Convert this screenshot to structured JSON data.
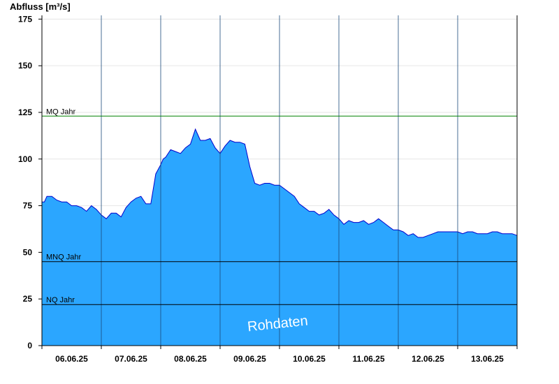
{
  "chart_data": {
    "type": "area",
    "ylabel": "Abfluss [m³/s]",
    "ylim": [
      0,
      177
    ],
    "yticks": [
      0,
      25,
      50,
      75,
      100,
      125,
      150,
      175
    ],
    "x_range": [
      "06.06.25 00:00",
      "14.06.25 00:00"
    ],
    "xtick_labels": [
      "06.06.25",
      "07.06.25",
      "08.06.25",
      "09.06.25",
      "10.06.25",
      "11.06.25",
      "12.06.25",
      "13.06.25"
    ],
    "grid": true,
    "colors": {
      "fill": "#2ba6ff",
      "line": "#0000cc",
      "mq_line": "#008000",
      "ref_line": "#000000"
    },
    "series": [
      {
        "x_hours": [
          0,
          1,
          2,
          4,
          6,
          8,
          10,
          12,
          14,
          16,
          18,
          20,
          22,
          24,
          26,
          28,
          30,
          32,
          34,
          36,
          38,
          40,
          42,
          44,
          46,
          48,
          49,
          50,
          52,
          54,
          56,
          58,
          60,
          62,
          64,
          66,
          68,
          70,
          72,
          74,
          76,
          78,
          80,
          82,
          84,
          86,
          88,
          90,
          92,
          94,
          96,
          98,
          100,
          102,
          104,
          106,
          108,
          110,
          112,
          114,
          116,
          118,
          120,
          122,
          124,
          126,
          128,
          130,
          132,
          134,
          136,
          138,
          140,
          142,
          144,
          146,
          148,
          150,
          152,
          154,
          156,
          158,
          160,
          162,
          164,
          166,
          168,
          170,
          172,
          174,
          176,
          178,
          180,
          182,
          184,
          186,
          188,
          190,
          192
        ],
        "y": [
          77,
          77,
          80,
          80,
          78,
          77,
          77,
          75,
          75,
          74,
          72,
          75,
          73,
          70,
          68,
          71,
          71,
          69,
          74,
          77,
          79,
          80,
          76,
          76,
          92,
          97,
          100,
          101,
          105,
          104,
          103,
          106,
          108,
          116,
          110,
          110,
          111,
          106,
          103,
          107,
          110,
          109,
          109,
          108,
          96,
          87,
          86,
          87,
          87,
          86,
          86,
          84,
          82,
          80,
          76,
          74,
          72,
          72,
          70,
          71,
          73,
          70,
          68,
          65,
          67,
          66,
          66,
          67,
          65,
          66,
          68,
          66,
          64,
          62,
          62,
          61,
          59,
          60,
          58,
          58,
          59,
          60,
          61,
          61,
          61,
          61,
          61,
          60,
          61,
          61,
          60,
          60,
          60,
          61,
          61,
          60,
          60,
          60,
          59
        ]
      }
    ],
    "reference_lines": [
      {
        "label": "MQ Jahr",
        "value": 123
      },
      {
        "label": "MNQ Jahr",
        "value": 45
      },
      {
        "label": "NQ Jahr",
        "value": 22
      }
    ],
    "watermark": "Rohdaten"
  }
}
